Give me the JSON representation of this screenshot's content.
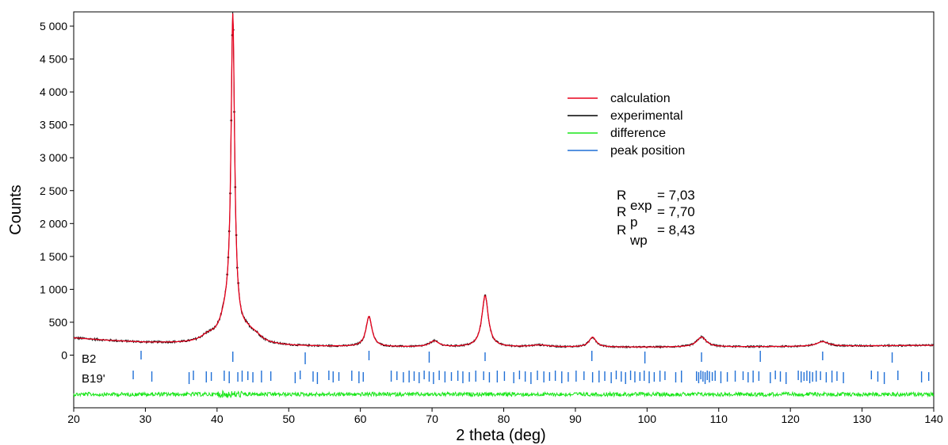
{
  "colors": {
    "calculation": "#e8001c",
    "experimental": "#000000",
    "difference": "#19e619",
    "peak_position": "#1f6fd6"
  },
  "chart_data": {
    "type": "line",
    "xlabel": "2 theta (deg)",
    "ylabel": "Counts",
    "xlim": [
      20,
      140
    ],
    "ylim": [
      0,
      5100
    ],
    "x_ticks": [
      20,
      30,
      40,
      50,
      60,
      70,
      80,
      90,
      100,
      110,
      120,
      130,
      140
    ],
    "y_ticks": [
      0,
      500,
      1000,
      1500,
      2000,
      2500,
      3000,
      3500,
      4000,
      4500,
      5000
    ],
    "y_tick_labels": [
      "0",
      "500",
      "1 000",
      "1 500",
      "2 000",
      "2 500",
      "3 000",
      "3 500",
      "4 000",
      "4 500",
      "5 000"
    ],
    "legend": [
      {
        "label": "calculation",
        "color": "#e8001c"
      },
      {
        "label": "experimental",
        "color": "#000000"
      },
      {
        "label": "difference",
        "color": "#19e619"
      },
      {
        "label": "peak position",
        "color": "#1f6fd6"
      }
    ],
    "legend_position": "top-right",
    "r_factors": [
      {
        "symbol": "R",
        "sub": "exp",
        "value": "= 7,03"
      },
      {
        "symbol": "R",
        "sub": "p",
        "value": "= 7,70"
      },
      {
        "symbol": "R",
        "sub": "wp",
        "value": "= 8,43"
      }
    ],
    "background": [
      [
        20,
        260
      ],
      [
        25,
        220
      ],
      [
        30,
        190
      ],
      [
        35,
        175
      ],
      [
        40,
        165
      ],
      [
        45,
        150
      ],
      [
        50,
        135
      ],
      [
        60,
        125
      ],
      [
        70,
        120
      ],
      [
        80,
        120
      ],
      [
        90,
        120
      ],
      [
        100,
        120
      ],
      [
        110,
        125
      ],
      [
        120,
        130
      ],
      [
        130,
        140
      ],
      [
        140,
        150
      ]
    ],
    "peaks": [
      {
        "x": 38.7,
        "h": 80,
        "w": 1.2
      },
      {
        "x": 41.3,
        "h": 300,
        "w": 1.1
      },
      {
        "x": 42.2,
        "h": 4650,
        "w": 0.3
      },
      {
        "x": 42.2,
        "h": 160,
        "w": 1.4
      },
      {
        "x": 44.3,
        "h": 120,
        "w": 1.3
      },
      {
        "x": 45.5,
        "h": 60,
        "w": 1.0
      },
      {
        "x": 61.2,
        "h": 460,
        "w": 0.5
      },
      {
        "x": 70.3,
        "h": 90,
        "w": 0.8
      },
      {
        "x": 77.4,
        "h": 780,
        "w": 0.55
      },
      {
        "x": 85.0,
        "h": 30,
        "w": 1.5
      },
      {
        "x": 92.4,
        "h": 150,
        "w": 0.6
      },
      {
        "x": 107.6,
        "h": 150,
        "w": 0.8
      },
      {
        "x": 124.5,
        "h": 70,
        "w": 1.0
      }
    ],
    "phases": [
      {
        "name": "B2",
        "positions": [
          29.4,
          42.2,
          52.3,
          61.2,
          69.6,
          77.4,
          92.3,
          99.7,
          107.6,
          115.8,
          124.5,
          134.2
        ]
      },
      {
        "name": "B19'",
        "positions": [
          28.3,
          30.9,
          36.1,
          36.7,
          38.5,
          39.2,
          41.0,
          41.7,
          42.9,
          43.5,
          44.3,
          45.0,
          46.2,
          47.5,
          50.9,
          51.6,
          53.4,
          54.0,
          55.6,
          56.2,
          57.0,
          58.8,
          59.8,
          60.4,
          64.3,
          65.1,
          66.0,
          66.8,
          67.5,
          68.2,
          68.9,
          69.6,
          70.2,
          71.0,
          71.8,
          72.7,
          73.6,
          74.3,
          75.2,
          76.1,
          77.2,
          78.0,
          79.1,
          80.1,
          81.4,
          82.2,
          83.0,
          83.8,
          84.7,
          85.6,
          86.4,
          87.2,
          88.1,
          89.0,
          90.1,
          91.2,
          92.4,
          93.3,
          94.1,
          95.0,
          95.7,
          96.4,
          97.0,
          97.7,
          98.3,
          99.0,
          99.6,
          100.3,
          101.0,
          101.8,
          102.5,
          104.0,
          104.8,
          106.9,
          107.2,
          107.5,
          107.8,
          108.1,
          108.4,
          108.7,
          109.1,
          109.5,
          110.3,
          111.2,
          112.3,
          113.4,
          114.1,
          114.8,
          115.6,
          117.2,
          117.9,
          118.6,
          119.4,
          121.1,
          121.5,
          121.9,
          122.3,
          122.7,
          123.1,
          123.6,
          124.2,
          125.0,
          125.8,
          126.5,
          127.4,
          131.3,
          132.2,
          133.1,
          135.0,
          138.3,
          139.3
        ]
      }
    ]
  }
}
